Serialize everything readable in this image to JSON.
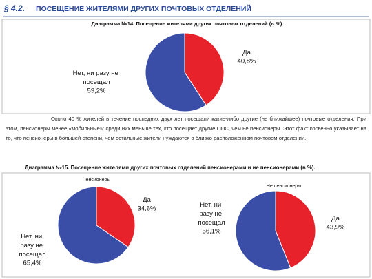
{
  "header": {
    "number": "§ 4.2.",
    "title": "ПОСЕЩЕНИЕ ЖИТЕЛЯМИ ДРУГИХ ПОЧТОВЫХ ОТДЕЛЕНИЙ"
  },
  "paragraph": "Около 40 % жителей в течение последних двух лет посещали какие-либо другие (не ближайшее) почтовые отделения. При этом, пенсионеры менее «мобильные»: среди них меньше тех, кто посещает другие ОПС, чем не пенсионеры. Этот факт косвенно указывает на то, что пенсионеры в большей степени, чем остальные жители нуждаются в близко расположенном почтовом отделении.",
  "chart_data": [
    {
      "type": "pie",
      "title": "Диаграмма №14. Посещение жителями других почтовых отделений (в %).",
      "categories": [
        "Да",
        "Нет, ни разу не посещал"
      ],
      "values": [
        40.8,
        59.2
      ],
      "value_labels": [
        "40,8%",
        "59,2%"
      ],
      "colors": [
        "#e8222b",
        "#3a4ea8"
      ]
    },
    {
      "type": "pie",
      "title": "Диаграмма №15. Посещение жителями других почтовых отделений пенсионерами и не пенсионерами (в %).",
      "subtitle": "Пенсионеры",
      "categories": [
        "Да",
        "Нет, ни разу не посещал"
      ],
      "values": [
        34.6,
        65.4
      ],
      "value_labels": [
        "34,6%",
        "65,4%"
      ],
      "colors": [
        "#e8222b",
        "#3a4ea8"
      ]
    },
    {
      "type": "pie",
      "subtitle": "Не пенсионеры",
      "categories": [
        "Да",
        "Нет, ни разу не посещал"
      ],
      "values": [
        43.9,
        56.1
      ],
      "value_labels": [
        "43,9%",
        "56,1%"
      ],
      "colors": [
        "#e8222b",
        "#3a4ea8"
      ]
    }
  ]
}
